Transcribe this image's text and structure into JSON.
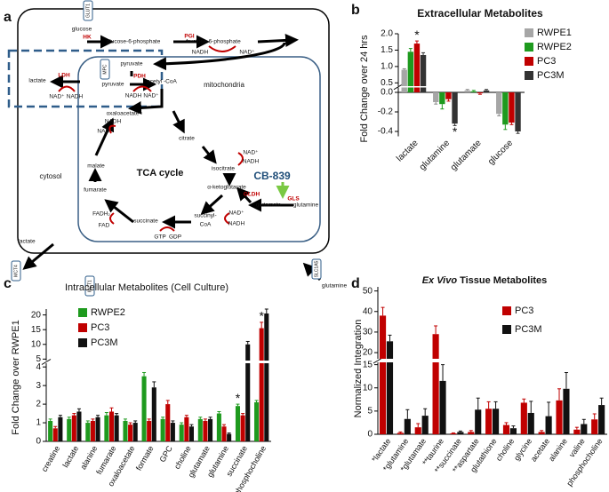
{
  "diagram": {
    "panel_label": "a",
    "labels": [
      "glucose",
      "HK",
      "glucose-6-phosphate",
      "PGI",
      "fructose-6-phosphate",
      "NADH",
      "NAD⁺",
      "pyruvate",
      "lactate",
      "LDH",
      "NAD⁺",
      "NADH",
      "MPC",
      "pyruvate",
      "PDH",
      "NADH",
      "NAD⁺",
      "acetyl -CoA",
      "mitochondria",
      "oxaloacetate",
      "NADH",
      "NAD⁺",
      "citrate",
      "isocitrate",
      "malate",
      "TCA cycle",
      "NAD⁺",
      "NADH",
      "α-ketoglutarate",
      "CB-839",
      "GLDH",
      "GLS",
      "glutamate",
      "glutamine",
      "fumarate",
      "FADH₂",
      "FAD",
      "succinate",
      "succinyl-",
      "CoA",
      "NAD⁺",
      "NADH",
      "GTP",
      "GDP",
      "cytosol",
      "lactate",
      "MCT4",
      "MCT1",
      "SLC1A5",
      "glutamine",
      "GLUT1"
    ]
  },
  "chart_data": [
    {
      "type": "bar",
      "panel_label": "b",
      "title": "Extracellular Metabolites",
      "ylabel": "Fold Change over 24 hrs",
      "categories": [
        "lactate",
        "glutamine",
        "glutamate",
        "glucose"
      ],
      "series": [
        {
          "name": "RWPE1",
          "color": "#a6a6a6",
          "values": [
            0.9,
            -0.1,
            0.02,
            -0.22
          ],
          "errors": [
            0.03,
            0.02,
            0.01,
            0.02
          ],
          "annotations": [
            null,
            null,
            null,
            null
          ]
        },
        {
          "name": "RWPE2",
          "color": "#1e9a1e",
          "values": [
            1.45,
            -0.12,
            0.01,
            -0.33
          ],
          "errors": [
            0.1,
            0.05,
            0.01,
            0.05
          ],
          "annotations": [
            null,
            null,
            null,
            null
          ]
        },
        {
          "name": "PC3",
          "color": "#c00000",
          "values": [
            1.7,
            -0.07,
            -0.01,
            -0.31
          ],
          "errors": [
            0.08,
            0.02,
            0.01,
            0.02
          ],
          "annotations": [
            "*",
            null,
            null,
            null
          ]
        },
        {
          "name": "PC3M",
          "color": "#333333",
          "values": [
            1.35,
            -0.32,
            0.02,
            -0.4
          ],
          "errors": [
            0.07,
            0.02,
            0.01,
            0.02
          ],
          "annotations": [
            null,
            "*",
            null,
            null
          ]
        }
      ],
      "segments": [
        {
          "ylim": [
            -0.45,
            0.05
          ],
          "yticks": [
            {
              "value": 0,
              "label": "0.0"
            },
            -0.2,
            -0.4
          ]
        },
        {
          "ylim": [
            0.4,
            2.0
          ],
          "yticks": [
            0.5,
            {
              "value": 1,
              "label": "1.0"
            },
            1.5,
            {
              "value": 2,
              "label": "2.0"
            }
          ]
        }
      ]
    },
    {
      "type": "bar",
      "panel_label": "c",
      "title": "Intracellular Metabolites (Cell Culture)",
      "ylabel": "Fold Change over RWPE1",
      "categories": [
        "creatine",
        "lactate",
        "alanine",
        "fumarate",
        "oxaloacetate",
        "formate",
        "GPC",
        "choline",
        "glutamate",
        "glutamine",
        "succinate",
        "phosphocholine"
      ],
      "series": [
        {
          "name": "RWPE2",
          "color": "#1e9a1e",
          "values": [
            1.1,
            1.2,
            1.0,
            1.4,
            1.1,
            3.5,
            1.2,
            0.9,
            1.2,
            1.5,
            1.9,
            2.1
          ],
          "errors": [
            0.1,
            0.1,
            0.1,
            0.15,
            0.1,
            0.2,
            0.1,
            0.1,
            0.1,
            0.1,
            0.1,
            0.1
          ],
          "annotations": [
            null,
            null,
            null,
            null,
            null,
            null,
            null,
            null,
            null,
            null,
            "*",
            null
          ]
        },
        {
          "name": "PC3",
          "color": "#c00000",
          "values": [
            0.7,
            1.4,
            1.1,
            1.6,
            0.9,
            1.1,
            2.0,
            1.3,
            1.1,
            0.8,
            1.4,
            15.5
          ],
          "errors": [
            0.1,
            0.1,
            0.1,
            0.2,
            0.1,
            0.1,
            0.2,
            0.1,
            0.1,
            0.1,
            0.1,
            2.0
          ],
          "annotations": [
            null,
            null,
            null,
            null,
            null,
            null,
            null,
            null,
            null,
            null,
            null,
            "*"
          ]
        },
        {
          "name": "PC3M",
          "color": "#111111",
          "values": [
            1.3,
            1.6,
            1.3,
            1.4,
            1.0,
            2.9,
            1.0,
            0.8,
            1.2,
            0.4,
            10.0,
            20.5
          ],
          "errors": [
            0.1,
            0.15,
            0.1,
            0.1,
            0.1,
            0.3,
            0.1,
            0.1,
            0.1,
            0.05,
            1.0,
            1.5
          ],
          "annotations": [
            null,
            null,
            null,
            null,
            null,
            null,
            null,
            null,
            null,
            null,
            null,
            null
          ]
        }
      ],
      "segments": [
        {
          "ylim": [
            0,
            4.2
          ],
          "yticks": [
            0,
            1,
            2,
            3,
            4
          ]
        },
        {
          "ylim": [
            4.5,
            22
          ],
          "yticks": [
            5,
            10,
            15,
            20
          ]
        }
      ]
    },
    {
      "type": "bar",
      "panel_label": "d",
      "title_italic": "Ex Vivo",
      "title": "Tissue Metabolites",
      "ylabel": "Normalized Integration",
      "categories": [
        "*lactate",
        "*glutamine",
        "*glutamate",
        "**taurine",
        "**succinate",
        "**aspartate",
        "glutathione",
        "choline",
        "glycine",
        "acetate",
        "alanine",
        "valine",
        "phosphocholine"
      ],
      "series": [
        {
          "name": "PC3",
          "color": "#c00000",
          "values": [
            38,
            0.3,
            1.5,
            29,
            0.2,
            0.5,
            5.5,
            2,
            6.8,
            0.5,
            7.3,
            1,
            3.2
          ],
          "errors": [
            4,
            0.2,
            0.8,
            4,
            0.1,
            0.3,
            1.5,
            0.5,
            0.8,
            0.3,
            2.5,
            0.5,
            1.2
          ]
        },
        {
          "name": "PC3M",
          "color": "#111111",
          "values": [
            25.5,
            3.3,
            4,
            11.5,
            0.5,
            5.3,
            5.5,
            1.3,
            4.6,
            3.9,
            9.8,
            2.2,
            6.3
          ],
          "errors": [
            3,
            2,
            1.5,
            3.5,
            0.2,
            2.5,
            1.5,
            0.5,
            2.5,
            3,
            3.5,
            1,
            1.5
          ]
        }
      ],
      "segments": [
        {
          "ylim": [
            0,
            15.5
          ],
          "yticks": [
            0,
            5,
            10,
            15
          ]
        },
        {
          "ylim": [
            17,
            52
          ],
          "yticks": [
            20,
            30,
            40,
            50
          ]
        }
      ]
    }
  ]
}
